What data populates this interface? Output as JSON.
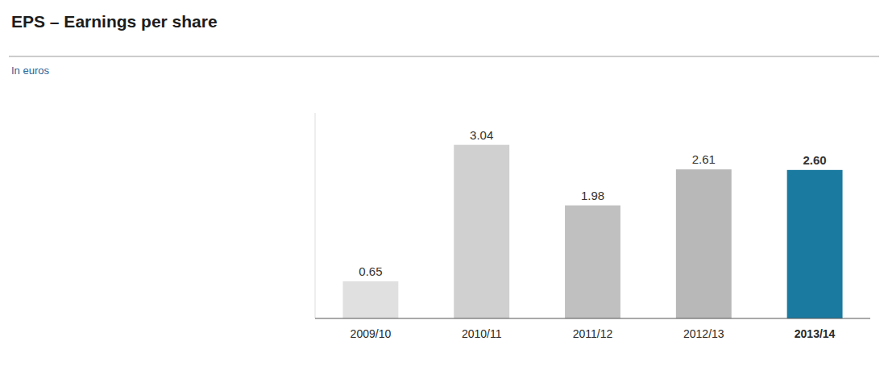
{
  "chart_data": {
    "type": "bar",
    "title": "EPS – Earnings per share",
    "subtitle": "In euros",
    "categories": [
      "2009/10",
      "2010/11",
      "2011/12",
      "2012/13",
      "2013/14"
    ],
    "values": [
      0.65,
      3.04,
      1.98,
      2.61,
      2.6
    ],
    "value_labels": [
      "0.65",
      "3.04",
      "1.98",
      "2.61",
      "2.60"
    ],
    "colors": [
      "#e0e0e0",
      "#d0d0d0",
      "#c0c0c0",
      "#b8b8b8",
      "#1a7aa0"
    ],
    "ylim": [
      0,
      3.6
    ],
    "grid": false,
    "data_labels": true,
    "tick_labels": "x"
  }
}
